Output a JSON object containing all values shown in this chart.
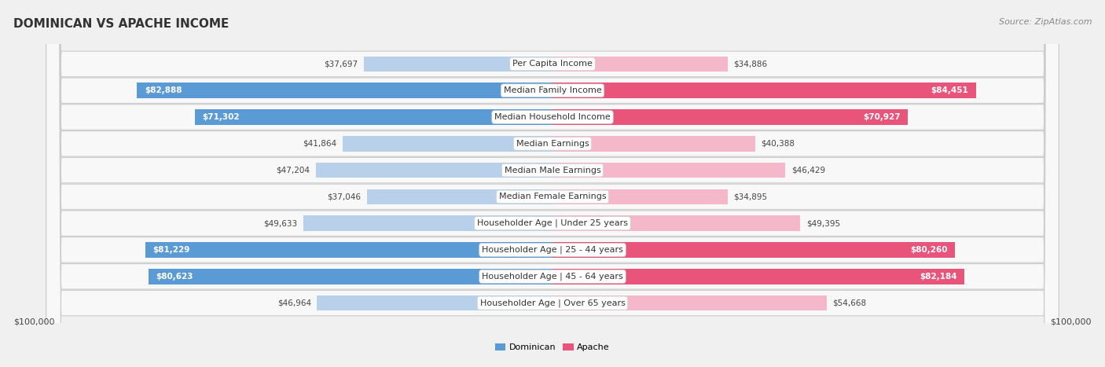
{
  "title": "DOMINICAN VS APACHE INCOME",
  "source": "Source: ZipAtlas.com",
  "categories": [
    "Per Capita Income",
    "Median Family Income",
    "Median Household Income",
    "Median Earnings",
    "Median Male Earnings",
    "Median Female Earnings",
    "Householder Age | Under 25 years",
    "Householder Age | 25 - 44 years",
    "Householder Age | 45 - 64 years",
    "Householder Age | Over 65 years"
  ],
  "dominican_values": [
    37697,
    82888,
    71302,
    41864,
    47204,
    37046,
    49633,
    81229,
    80623,
    46964
  ],
  "apache_values": [
    34886,
    84451,
    70927,
    40388,
    46429,
    34895,
    49395,
    80260,
    82184,
    54668
  ],
  "dominican_color_light": "#b8d0ea",
  "dominican_color_dark": "#5b9bd5",
  "apache_color_light": "#f5b8cb",
  "apache_color_dark": "#e8547a",
  "dominican_threshold": 60000,
  "apache_threshold": 60000,
  "max_value": 100000,
  "xlabel_left": "$100,000",
  "xlabel_right": "$100,000",
  "legend_dominican": "Dominican",
  "legend_apache": "Apache",
  "background_color": "#f0f0f0",
  "row_bg_color": "#f8f8f8",
  "row_border_color": "#cccccc",
  "title_fontsize": 11,
  "source_fontsize": 8,
  "label_fontsize": 8,
  "value_fontsize": 7.5,
  "axis_fontsize": 8
}
